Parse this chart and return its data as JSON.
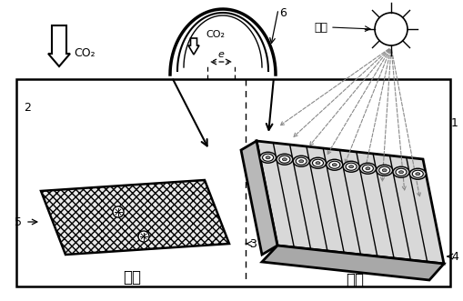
{
  "bg_color": "#ffffff",
  "labels": {
    "CO2_arrow": "CO₂",
    "guang_yuan": "光源",
    "wu_shui_left": "污水",
    "wu_shui_right": "污水",
    "num_1": "1",
    "num_2": "2",
    "num_3": "3",
    "num_4": "4",
    "num_5": "5",
    "num_6": "6",
    "e_label": "e",
    "CO2_dome": "CO₂"
  },
  "font": "SimHei"
}
